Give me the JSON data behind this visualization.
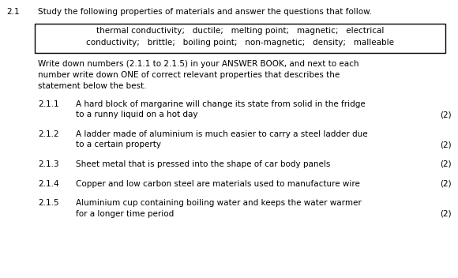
{
  "bg_color": "#ffffff",
  "section_number": "2.1",
  "section_title": "Study the following properties of materials and answer the questions that follow.",
  "box_text_line1": "thermal conductivity;   ductile;   melting point;   magnetic;   electrical",
  "box_text_line2": "conductivity;   brittle;   boiling point;   non-magnetic;   density;   malleable",
  "instruction_line1": "Write down numbers (2.1.1 to 2.1.5) in your ANSWER BOOK, and next to each",
  "instruction_line2": "number write down ONE of correct relevant properties that describes the",
  "instruction_line3": "statement below the best.",
  "questions": [
    {
      "num": "2.1.1",
      "line1": "A hard block of margarine will change its state from solid in the fridge",
      "line2": "to a runny liquid on a hot day",
      "marks": "(2)",
      "marks_on_line": 2
    },
    {
      "num": "2.1.2",
      "line1": "A ladder made of aluminium is much easier to carry a steel ladder due",
      "line2": "to a certain property",
      "marks": "(2)",
      "marks_on_line": 2
    },
    {
      "num": "2.1.3",
      "line1": "Sheet metal that is pressed into the shape of car body panels",
      "line2": "",
      "marks": "(2)",
      "marks_on_line": 1
    },
    {
      "num": "2.1.4",
      "line1": "Copper and low carbon steel are materials used to manufacture wire",
      "line2": "",
      "marks": "(2)",
      "marks_on_line": 1
    },
    {
      "num": "2.1.5",
      "line1": "Aluminium cup containing boiling water and keeps the water warmer",
      "line2": "for a longer time period",
      "marks": "(2)",
      "marks_on_line": 2
    }
  ],
  "font_size": 7.5,
  "font_color": "#000000",
  "box_border_color": "#000000"
}
